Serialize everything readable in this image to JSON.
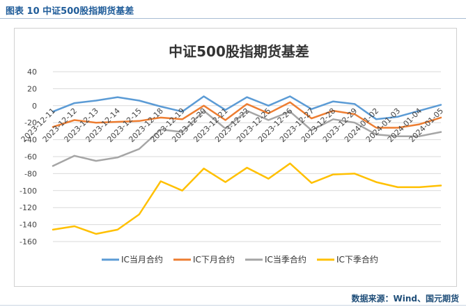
{
  "header": {
    "caption": "图表 10  中证500股指期货基差"
  },
  "footer": {
    "source": "数据来源：Wind、国元期货"
  },
  "colors": {
    "caption": "#1f5c99",
    "grid": "#d9d9d9"
  },
  "chart_data": {
    "type": "line",
    "title": "中证500股指期货基差",
    "xlabel": "",
    "ylabel": "",
    "ylim": [
      -160,
      40
    ],
    "yticks": [
      40,
      20,
      0,
      -20,
      -40,
      -60,
      -80,
      -100,
      -120,
      -140,
      -160
    ],
    "grid": true,
    "legend_position": "bottom",
    "x": [
      "2023-12-11",
      "2023-12-12",
      "2023-12-13",
      "2023-12-14",
      "2023-12-15",
      "2023-12-18",
      "2023-12-19",
      "2023-12-20",
      "2023-12-21",
      "2023-12-22",
      "2023-12-25",
      "2023-12-26",
      "2023-12-27",
      "2023-12-28",
      "2023-12-29",
      "2024-01-02",
      "2024-01-03",
      "2024-01-04",
      "2024-01-05"
    ],
    "series": [
      {
        "name": "IC当月合约",
        "color": "#5b9bd5",
        "values": [
          -7,
          3,
          6,
          10,
          6,
          -1,
          -7,
          11,
          -5,
          10,
          0,
          11,
          -4,
          5,
          2,
          -16,
          -13,
          -6,
          1
        ]
      },
      {
        "name": "IC下月合约",
        "color": "#ed7d31",
        "values": [
          -25,
          -17,
          -20,
          -19,
          -18,
          -14,
          -16,
          0,
          -17,
          2,
          -9,
          4,
          -15,
          -6,
          -10,
          -26,
          -26,
          -22,
          -14
        ]
      },
      {
        "name": "IC当季合约",
        "color": "#a5a5a5",
        "values": [
          -71,
          -59,
          -65,
          -61,
          -51,
          -28,
          -31,
          -6,
          -27,
          -6,
          -17,
          -7,
          -29,
          -16,
          -20,
          -34,
          -36,
          -36,
          -31
        ]
      },
      {
        "name": "IC下季合约",
        "color": "#ffc000",
        "values": [
          -146,
          -142,
          -151,
          -146,
          -128,
          -89,
          -100,
          -74,
          -90,
          -73,
          -86,
          -68,
          -91,
          -81,
          -80,
          -90,
          -96,
          -96,
          -94
        ]
      }
    ]
  }
}
